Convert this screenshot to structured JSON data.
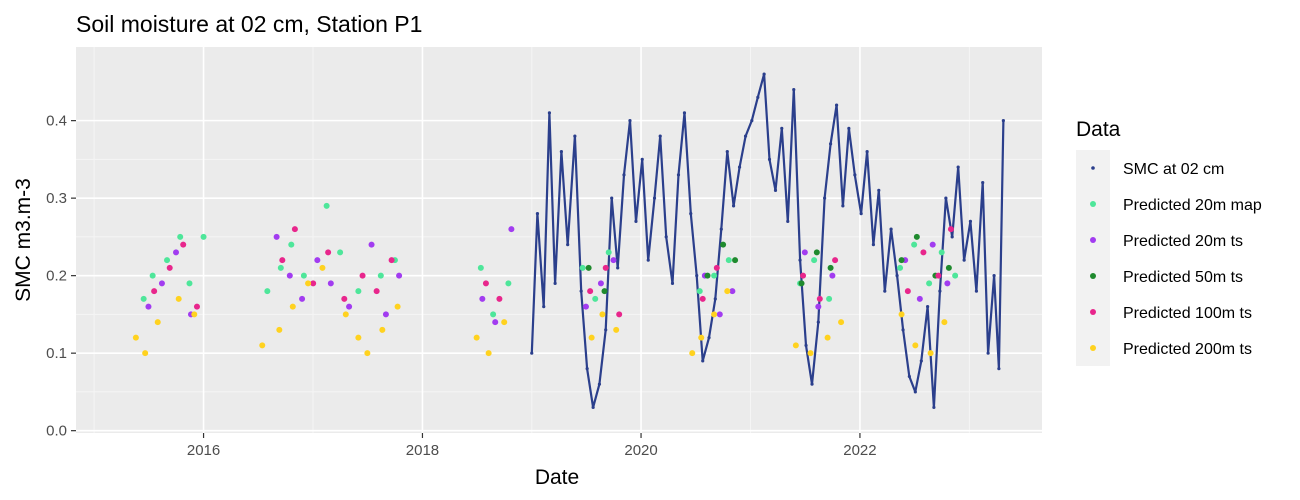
{
  "chart_data": {
    "type": "scatter",
    "title": "Soil moisture at 02 cm, Station P1",
    "xlabel": "Date",
    "ylabel": "SMC m3.m-3",
    "x_axis_kind": "date",
    "xlim": [
      "2014-11-01",
      "2023-09-01"
    ],
    "ylim": [
      -0.003,
      0.495
    ],
    "x_ticks": [
      "2016-01-01",
      "2018-01-01",
      "2020-01-01",
      "2022-01-01"
    ],
    "x_tick_labels": [
      "2016",
      "2018",
      "2020",
      "2022"
    ],
    "y_ticks": [
      0.0,
      0.1,
      0.2,
      0.3,
      0.4
    ],
    "y_tick_labels": [
      "0.0",
      "0.1",
      "0.2",
      "0.3",
      "0.4"
    ],
    "grid": true,
    "panel_background": "#ebebeb",
    "legend": {
      "title": "Data",
      "position": "right",
      "background": "#f2f2f2"
    },
    "series": [
      {
        "name": "SMC at 02 cm",
        "color": "#2b3f8c",
        "marker": "small-dot",
        "x": [
          "2019-01-01",
          "2019-01-20",
          "2019-02-10",
          "2019-03-01",
          "2019-03-20",
          "2019-04-10",
          "2019-05-01",
          "2019-05-25",
          "2019-06-15",
          "2019-07-05",
          "2019-07-25",
          "2019-08-15",
          "2019-09-05",
          "2019-09-25",
          "2019-10-15",
          "2019-11-05",
          "2019-11-25",
          "2019-12-15",
          "2020-01-05",
          "2020-01-25",
          "2020-02-15",
          "2020-03-05",
          "2020-03-25",
          "2020-04-15",
          "2020-05-05",
          "2020-05-25",
          "2020-06-15",
          "2020-07-05",
          "2020-07-25",
          "2020-08-15",
          "2020-09-05",
          "2020-09-25",
          "2020-10-15",
          "2020-11-05",
          "2020-11-25",
          "2020-12-15",
          "2021-01-05",
          "2021-01-25",
          "2021-02-15",
          "2021-03-05",
          "2021-03-25",
          "2021-04-15",
          "2021-05-05",
          "2021-05-25",
          "2021-06-15",
          "2021-07-05",
          "2021-07-25",
          "2021-08-15",
          "2021-09-05",
          "2021-09-25",
          "2021-10-15",
          "2021-11-05",
          "2021-11-25",
          "2021-12-15",
          "2022-01-05",
          "2022-01-25",
          "2022-02-15",
          "2022-03-05",
          "2022-03-25",
          "2022-04-15",
          "2022-05-05",
          "2022-05-25",
          "2022-06-15",
          "2022-07-05",
          "2022-07-25",
          "2022-08-15",
          "2022-09-05",
          "2022-09-25",
          "2022-10-15",
          "2022-11-05",
          "2022-11-25",
          "2022-12-15",
          "2023-01-05",
          "2023-01-25",
          "2023-02-15",
          "2023-03-05",
          "2023-03-25",
          "2023-04-10",
          "2023-04-25"
        ],
        "y": [
          0.1,
          0.28,
          0.16,
          0.41,
          0.19,
          0.36,
          0.24,
          0.38,
          0.18,
          0.08,
          0.03,
          0.06,
          0.13,
          0.3,
          0.21,
          0.33,
          0.4,
          0.27,
          0.35,
          0.22,
          0.3,
          0.38,
          0.25,
          0.19,
          0.33,
          0.41,
          0.28,
          0.2,
          0.09,
          0.12,
          0.17,
          0.26,
          0.36,
          0.29,
          0.34,
          0.38,
          0.4,
          0.43,
          0.46,
          0.35,
          0.31,
          0.39,
          0.27,
          0.44,
          0.22,
          0.11,
          0.06,
          0.14,
          0.3,
          0.37,
          0.42,
          0.29,
          0.39,
          0.33,
          0.28,
          0.36,
          0.24,
          0.31,
          0.18,
          0.26,
          0.2,
          0.13,
          0.07,
          0.05,
          0.09,
          0.16,
          0.03,
          0.18,
          0.3,
          0.25,
          0.34,
          0.22,
          0.27,
          0.18,
          0.32,
          0.1,
          0.2,
          0.08,
          0.4
        ]
      },
      {
        "name": "Predicted 20m map",
        "color": "#4ee69a",
        "marker": "dot",
        "x": [
          "2015-06-15",
          "2015-07-15",
          "2015-09-01",
          "2015-10-15",
          "2015-11-15",
          "2016-01-01",
          "2016-08-01",
          "2016-09-15",
          "2016-10-20",
          "2016-12-01",
          "2017-02-15",
          "2017-04-01",
          "2017-06-01",
          "2017-08-15",
          "2017-10-01",
          "2018-07-15",
          "2018-08-25",
          "2018-10-15",
          "2019-06-20",
          "2019-08-01",
          "2019-09-15",
          "2020-07-15",
          "2020-09-01",
          "2020-10-20",
          "2021-06-15",
          "2021-08-01",
          "2021-09-20",
          "2022-05-15",
          "2022-07-01",
          "2022-08-20",
          "2022-10-01",
          "2022-11-15"
        ],
        "y": [
          0.17,
          0.2,
          0.22,
          0.25,
          0.19,
          0.25,
          0.18,
          0.21,
          0.24,
          0.2,
          0.29,
          0.23,
          0.18,
          0.2,
          0.22,
          0.21,
          0.15,
          0.19,
          0.21,
          0.17,
          0.23,
          0.18,
          0.2,
          0.22,
          0.19,
          0.22,
          0.17,
          0.21,
          0.24,
          0.19,
          0.23,
          0.2
        ]
      },
      {
        "name": "Predicted 20m ts",
        "color": "#a23cf0",
        "marker": "dot",
        "x": [
          "2015-07-01",
          "2015-08-15",
          "2015-10-01",
          "2015-11-20",
          "2016-09-01",
          "2016-10-15",
          "2016-11-25",
          "2017-01-15",
          "2017-03-01",
          "2017-05-01",
          "2017-07-15",
          "2017-09-01",
          "2017-10-15",
          "2018-07-20",
          "2018-09-01",
          "2018-10-25",
          "2019-07-01",
          "2019-08-20",
          "2019-10-01",
          "2020-08-01",
          "2020-09-20",
          "2020-11-01",
          "2021-07-01",
          "2021-08-15",
          "2021-10-01",
          "2022-06-01",
          "2022-07-20",
          "2022-09-01",
          "2022-10-20"
        ],
        "y": [
          0.16,
          0.19,
          0.23,
          0.15,
          0.25,
          0.2,
          0.17,
          0.22,
          0.19,
          0.16,
          0.24,
          0.15,
          0.2,
          0.17,
          0.14,
          0.26,
          0.16,
          0.19,
          0.22,
          0.2,
          0.15,
          0.18,
          0.23,
          0.16,
          0.2,
          0.22,
          0.17,
          0.24,
          0.19
        ]
      },
      {
        "name": "Predicted 50m ts",
        "color": "#1f8a2e",
        "marker": "dot",
        "x": [
          "2019-07-10",
          "2019-09-01",
          "2020-08-10",
          "2020-10-01",
          "2020-11-10",
          "2021-06-20",
          "2021-08-10",
          "2021-09-25",
          "2022-05-20",
          "2022-07-10",
          "2022-09-10",
          "2022-10-25"
        ],
        "y": [
          0.21,
          0.18,
          0.2,
          0.24,
          0.22,
          0.19,
          0.23,
          0.21,
          0.22,
          0.25,
          0.2,
          0.21
        ]
      },
      {
        "name": "Predicted 100m ts",
        "color": "#e8268c",
        "marker": "dot",
        "x": [
          "2015-07-20",
          "2015-09-10",
          "2015-10-25",
          "2015-12-10",
          "2016-09-20",
          "2016-11-01",
          "2017-01-01",
          "2017-02-20",
          "2017-04-15",
          "2017-06-15",
          "2017-08-01",
          "2017-09-20",
          "2018-08-01",
          "2018-09-15",
          "2019-07-15",
          "2019-09-05",
          "2019-10-20",
          "2020-07-25",
          "2020-09-10",
          "2021-06-25",
          "2021-08-20",
          "2021-10-10",
          "2022-06-10",
          "2022-08-01",
          "2022-09-20",
          "2022-11-01"
        ],
        "y": [
          0.18,
          0.21,
          0.24,
          0.16,
          0.22,
          0.26,
          0.19,
          0.23,
          0.17,
          0.2,
          0.18,
          0.22,
          0.19,
          0.17,
          0.18,
          0.21,
          0.15,
          0.17,
          0.21,
          0.2,
          0.17,
          0.22,
          0.18,
          0.23,
          0.2,
          0.26
        ]
      },
      {
        "name": "Predicted 200m ts",
        "color": "#ffd21f",
        "marker": "dot",
        "x": [
          "2015-05-20",
          "2015-06-20",
          "2015-08-01",
          "2015-10-10",
          "2015-12-01",
          "2016-07-15",
          "2016-09-10",
          "2016-10-25",
          "2016-12-15",
          "2017-02-01",
          "2017-04-20",
          "2017-06-01",
          "2017-07-01",
          "2017-08-20",
          "2017-10-10",
          "2018-07-01",
          "2018-08-10",
          "2018-10-01",
          "2019-07-20",
          "2019-08-25",
          "2019-10-10",
          "2020-06-20",
          "2020-07-20",
          "2020-09-01",
          "2020-10-15",
          "2021-06-01",
          "2021-07-20",
          "2021-09-15",
          "2021-10-30",
          "2022-05-20",
          "2022-07-05",
          "2022-08-25",
          "2022-10-10"
        ],
        "y": [
          0.12,
          0.1,
          0.14,
          0.17,
          0.15,
          0.11,
          0.13,
          0.16,
          0.19,
          0.21,
          0.15,
          0.12,
          0.1,
          0.13,
          0.16,
          0.12,
          0.1,
          0.14,
          0.12,
          0.15,
          0.13,
          0.1,
          0.12,
          0.15,
          0.18,
          0.11,
          0.1,
          0.12,
          0.14,
          0.15,
          0.11,
          0.1,
          0.14
        ]
      }
    ]
  }
}
